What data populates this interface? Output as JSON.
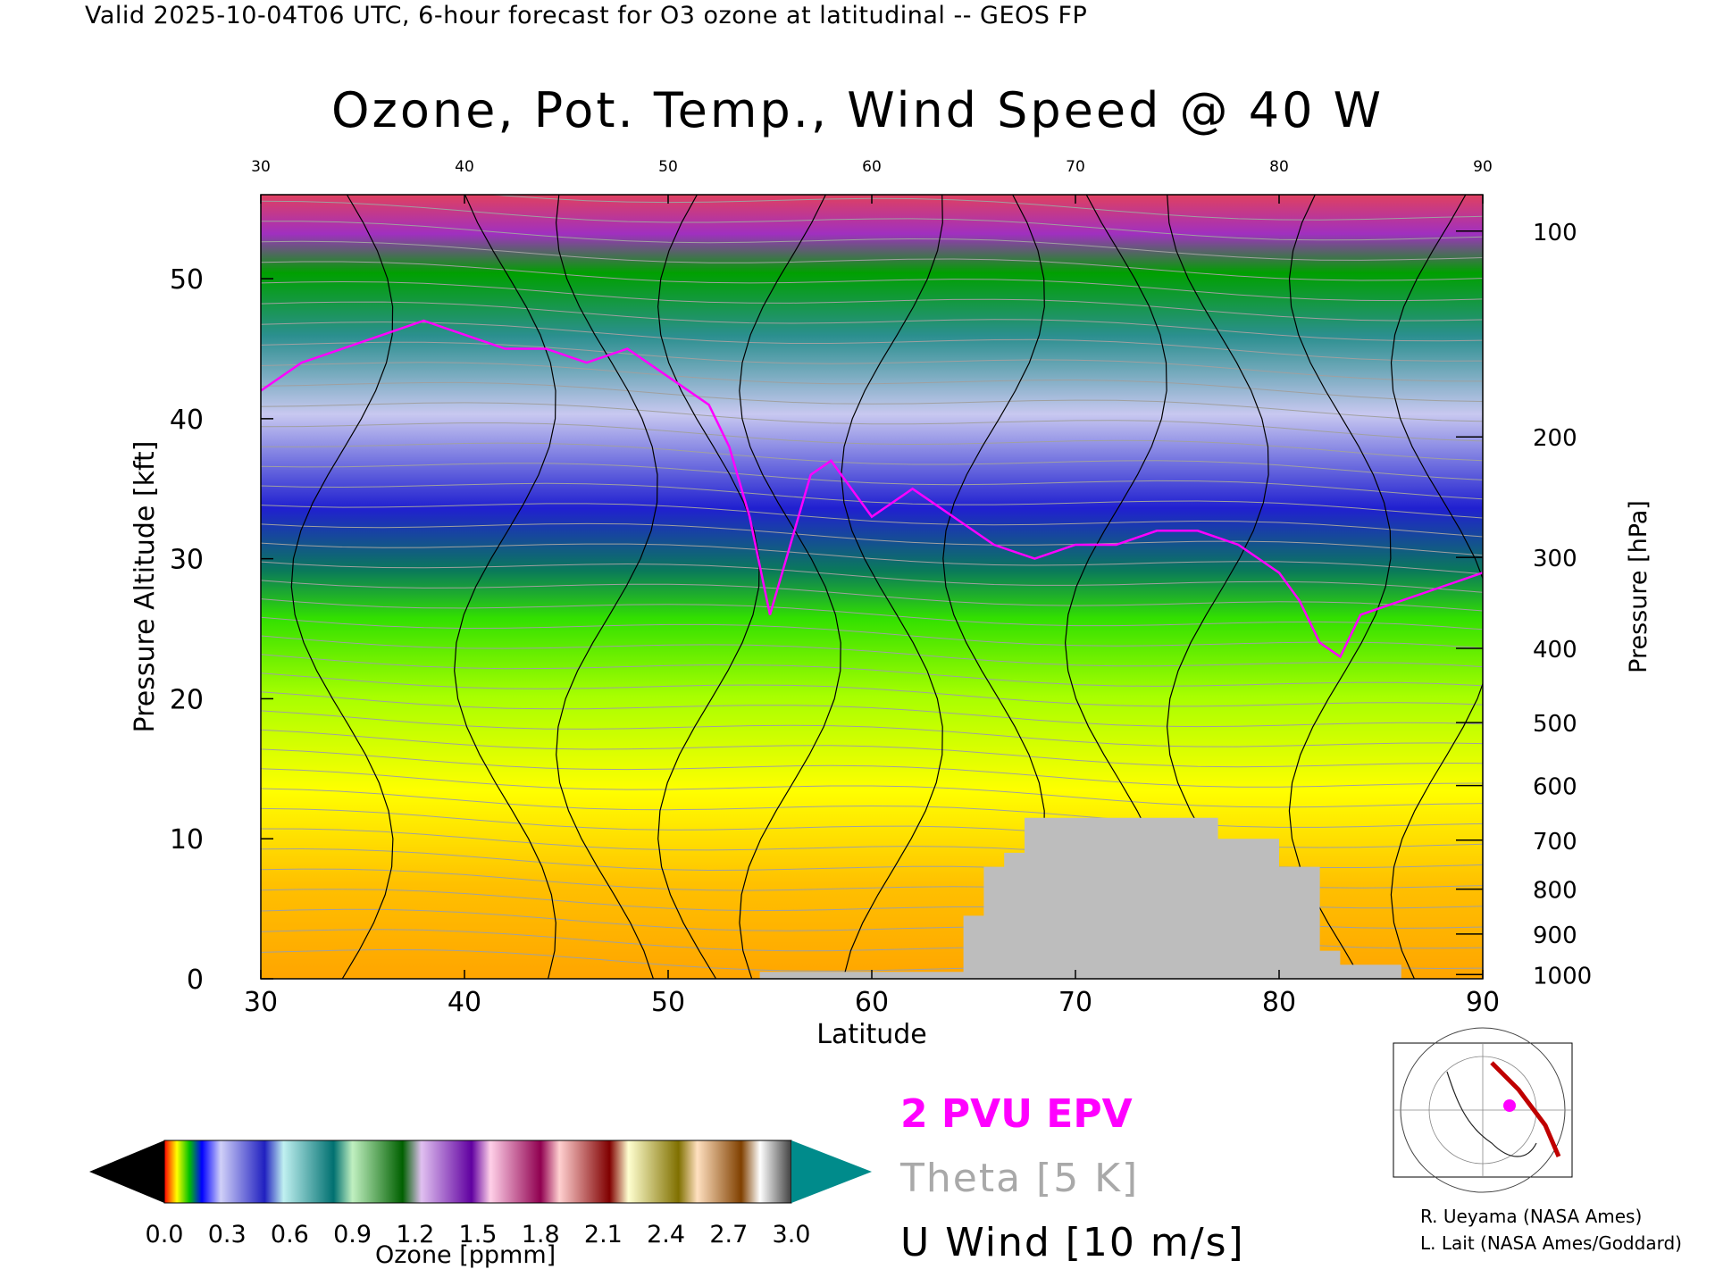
{
  "header": {
    "valid_line": "Valid 2025-10-04T06 UTC, 6-hour forecast for O3 ozone at latitudinal -- GEOS FP"
  },
  "chart_data": {
    "type": "heatmap",
    "title": "Ozone, Pot. Temp., Wind Speed @ 40 W",
    "xlabel": "Latitude",
    "ylabel_left": "Pressure Altitude [kft]",
    "ylabel_right": "Pressure [hPa]",
    "xlim": [
      30,
      90
    ],
    "ylim": [
      0,
      56
    ],
    "x_ticks": [
      "30",
      "40",
      "50",
      "60",
      "70",
      "80",
      "90"
    ],
    "y_ticks_left": [
      "0",
      "10",
      "20",
      "30",
      "40",
      "50"
    ],
    "y_ticks_right": [
      {
        "label": "100",
        "kft": 53.4
      },
      {
        "label": "200",
        "kft": 38.7
      },
      {
        "label": "300",
        "kft": 30.1
      },
      {
        "label": "400",
        "kft": 23.6
      },
      {
        "label": "500",
        "kft": 18.3
      },
      {
        "label": "600",
        "kft": 13.8
      },
      {
        "label": "700",
        "kft": 9.9
      },
      {
        "label": "800",
        "kft": 6.4
      },
      {
        "label": "900",
        "kft": 3.2
      },
      {
        "label": "1000",
        "kft": 0.3
      }
    ],
    "tropopause_2pvu_kft": [
      [
        30,
        42
      ],
      [
        32,
        44
      ],
      [
        34,
        45
      ],
      [
        36,
        46
      ],
      [
        38,
        47
      ],
      [
        40,
        46
      ],
      [
        42,
        45
      ],
      [
        44,
        45
      ],
      [
        46,
        44
      ],
      [
        48,
        45
      ],
      [
        50,
        43
      ],
      [
        52,
        41
      ],
      [
        53,
        38
      ],
      [
        54,
        33
      ],
      [
        55,
        26
      ],
      [
        56,
        31
      ],
      [
        57,
        36
      ],
      [
        58,
        37
      ],
      [
        59,
        35
      ],
      [
        60,
        33
      ],
      [
        62,
        35
      ],
      [
        64,
        33
      ],
      [
        66,
        31
      ],
      [
        68,
        30
      ],
      [
        70,
        31
      ],
      [
        72,
        31
      ],
      [
        74,
        32
      ],
      [
        76,
        32
      ],
      [
        78,
        31
      ],
      [
        80,
        29
      ],
      [
        81,
        27
      ],
      [
        82,
        24
      ],
      [
        83,
        23
      ],
      [
        84,
        26
      ],
      [
        86,
        27
      ],
      [
        88,
        28
      ],
      [
        90,
        29
      ]
    ],
    "surface_terrain_kft": [
      [
        54.5,
        0.5
      ],
      [
        60,
        0.5
      ],
      [
        62,
        0.5
      ],
      [
        64.5,
        0.5
      ],
      [
        64.5,
        4.5
      ],
      [
        65.5,
        4.5
      ],
      [
        65.5,
        8
      ],
      [
        66.5,
        8
      ],
      [
        66.5,
        9
      ],
      [
        67.5,
        9
      ],
      [
        67.5,
        11.5
      ],
      [
        77,
        11.5
      ],
      [
        77,
        10
      ],
      [
        80,
        10
      ],
      [
        80,
        8
      ],
      [
        82,
        8
      ],
      [
        82,
        2
      ],
      [
        83,
        2
      ],
      [
        83,
        1
      ],
      [
        86,
        1
      ],
      [
        86,
        0.3
      ]
    ],
    "colorbar": {
      "label": "Ozone [ppmm]",
      "tick_labels": [
        "0.0",
        "0.3",
        "0.6",
        "0.9",
        "1.2",
        "1.5",
        "1.8",
        "2.1",
        "2.4",
        "2.7",
        "3.0"
      ],
      "range": [
        0.0,
        3.0
      ]
    },
    "legend": {
      "epv": "2 PVU EPV",
      "theta": "Theta [5 K]",
      "uwind": "U Wind [10 m/s]"
    },
    "colors": {
      "epv": "#ff00ff",
      "theta": "#a0a0a0",
      "uwind": "#000000",
      "terrain": "#bdbdbd"
    }
  },
  "credits": {
    "line1": "R. Ueyama (NASA Ames)",
    "line2": "L. Lait (NASA Ames/Goddard)"
  },
  "inset_map": {
    "icon": "polar-map-icon"
  }
}
